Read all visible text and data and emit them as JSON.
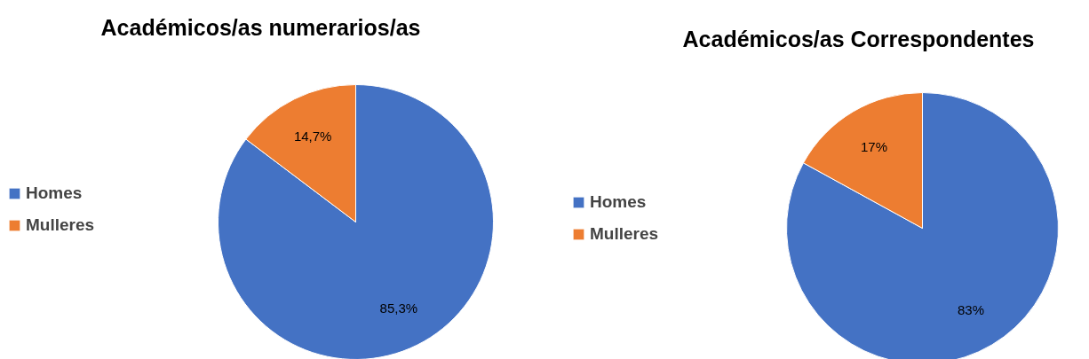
{
  "chart_data": [
    {
      "type": "pie",
      "title": "Académicos/as numerarios/as",
      "categories": [
        "Homes",
        "Mulleres"
      ],
      "values": [
        85.3,
        14.7
      ],
      "colors": [
        "#4472c4",
        "#ed7d31"
      ],
      "value_labels": [
        "85,3%",
        "14,7%"
      ],
      "legend": "left"
    },
    {
      "type": "pie",
      "title": "Académicos/as Correspondentes",
      "categories": [
        "Homes",
        "Mulleres"
      ],
      "values": [
        83,
        17
      ],
      "colors": [
        "#4472c4",
        "#ed7d31"
      ],
      "value_labels": [
        "83%",
        "17%"
      ],
      "legend": "left"
    }
  ]
}
